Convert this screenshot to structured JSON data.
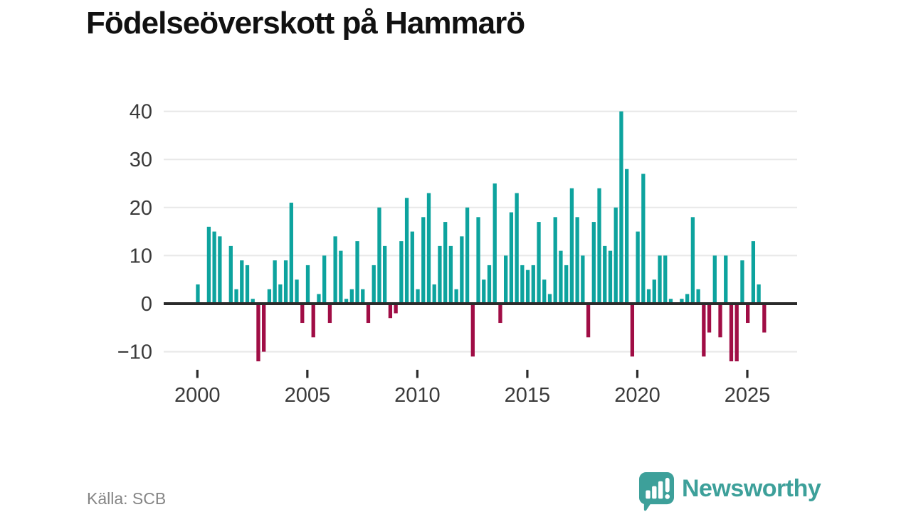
{
  "title": "Födelseöverskott på Hammarö",
  "source": "Källa: SCB",
  "branding": {
    "name": "Newsworthy",
    "color": "#3da09a"
  },
  "colors": {
    "positive": "#0da39e",
    "negative": "#a00d45",
    "grid": "#e8e8e8",
    "axis": "#2b2b2b",
    "tick_label": "#3a3a3a"
  },
  "chart_data": {
    "type": "bar",
    "title": "Födelseöverskott på Hammarö",
    "x_unit": "quarter",
    "start": "2000-Q1",
    "end": "2025-Q4",
    "years": [
      {
        "year": 2000,
        "q": [
          4,
          0,
          16,
          15
        ]
      },
      {
        "year": 2001,
        "q": [
          14,
          0,
          12,
          3
        ]
      },
      {
        "year": 2002,
        "q": [
          9,
          8,
          1,
          -12
        ]
      },
      {
        "year": 2003,
        "q": [
          -10,
          3,
          9,
          4
        ]
      },
      {
        "year": 2004,
        "q": [
          9,
          21,
          5,
          -4
        ]
      },
      {
        "year": 2005,
        "q": [
          8,
          -7,
          2,
          10
        ]
      },
      {
        "year": 2006,
        "q": [
          -4,
          14,
          11,
          1
        ]
      },
      {
        "year": 2007,
        "q": [
          3,
          13,
          3,
          -4
        ]
      },
      {
        "year": 2008,
        "q": [
          8,
          20,
          12,
          -3
        ]
      },
      {
        "year": 2009,
        "q": [
          -2,
          13,
          22,
          15
        ]
      },
      {
        "year": 2010,
        "q": [
          3,
          18,
          23,
          4
        ]
      },
      {
        "year": 2011,
        "q": [
          12,
          17,
          12,
          3
        ]
      },
      {
        "year": 2012,
        "q": [
          14,
          20,
          -11,
          18
        ]
      },
      {
        "year": 2013,
        "q": [
          5,
          8,
          25,
          -4
        ]
      },
      {
        "year": 2014,
        "q": [
          10,
          19,
          23,
          8
        ]
      },
      {
        "year": 2015,
        "q": [
          7,
          8,
          17,
          5
        ]
      },
      {
        "year": 2016,
        "q": [
          2,
          18,
          11,
          8
        ]
      },
      {
        "year": 2017,
        "q": [
          24,
          18,
          10,
          -7
        ]
      },
      {
        "year": 2018,
        "q": [
          17,
          24,
          12,
          11
        ]
      },
      {
        "year": 2019,
        "q": [
          20,
          40,
          28,
          -11
        ]
      },
      {
        "year": 2020,
        "q": [
          15,
          27,
          3,
          5
        ]
      },
      {
        "year": 2021,
        "q": [
          10,
          10,
          1,
          0
        ]
      },
      {
        "year": 2022,
        "q": [
          1,
          2,
          18,
          3
        ]
      },
      {
        "year": 2023,
        "q": [
          -11,
          -6,
          10,
          -7
        ]
      },
      {
        "year": 2024,
        "q": [
          10,
          -12,
          -12,
          9
        ]
      },
      {
        "year": 2025,
        "q": [
          -4,
          13,
          4,
          -6
        ]
      }
    ],
    "yticks": [
      -10,
      0,
      10,
      20,
      30,
      40
    ],
    "xticks": [
      2000,
      2005,
      2010,
      2015,
      2020,
      2025
    ],
    "ylim": [
      -13,
      41
    ],
    "grid": true,
    "legend": false
  }
}
